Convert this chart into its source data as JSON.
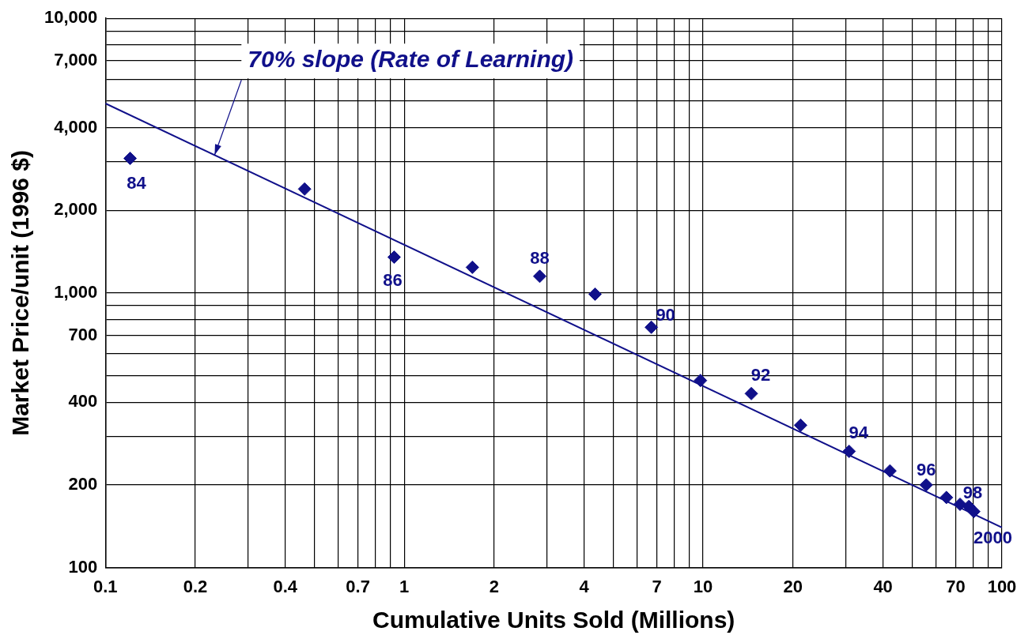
{
  "chart_data": {
    "type": "scatter",
    "xlabel": "Cumulative Units Sold (Millions)",
    "ylabel": "Market Price/unit (1996 $)",
    "log": "xy",
    "grid": true,
    "xlim": [
      0.1,
      100
    ],
    "ylim": [
      100,
      10000
    ],
    "xticks": [
      {
        "value": 0.1,
        "label": "0.1"
      },
      {
        "value": 0.2,
        "label": "0.2"
      },
      {
        "value": 0.3,
        "label": null
      },
      {
        "value": 0.4,
        "label": "0.4"
      },
      {
        "value": 0.5,
        "label": null
      },
      {
        "value": 0.6,
        "label": null
      },
      {
        "value": 0.7,
        "label": "0.7"
      },
      {
        "value": 0.8,
        "label": null
      },
      {
        "value": 0.9,
        "label": null
      },
      {
        "value": 1,
        "label": "1"
      },
      {
        "value": 2,
        "label": "2"
      },
      {
        "value": 3,
        "label": null
      },
      {
        "value": 4,
        "label": "4"
      },
      {
        "value": 5,
        "label": null
      },
      {
        "value": 6,
        "label": null
      },
      {
        "value": 7,
        "label": "7"
      },
      {
        "value": 8,
        "label": null
      },
      {
        "value": 9,
        "label": null
      },
      {
        "value": 10,
        "label": "10"
      },
      {
        "value": 20,
        "label": "20"
      },
      {
        "value": 30,
        "label": null
      },
      {
        "value": 40,
        "label": "40"
      },
      {
        "value": 50,
        "label": null
      },
      {
        "value": 60,
        "label": null
      },
      {
        "value": 70,
        "label": "70"
      },
      {
        "value": 80,
        "label": null
      },
      {
        "value": 90,
        "label": null
      },
      {
        "value": 100,
        "label": "100"
      }
    ],
    "yticks": [
      {
        "value": 100,
        "label": "100"
      },
      {
        "value": 200,
        "label": "200"
      },
      {
        "value": 300,
        "label": null
      },
      {
        "value": 400,
        "label": "400"
      },
      {
        "value": 500,
        "label": null
      },
      {
        "value": 600,
        "label": null
      },
      {
        "value": 700,
        "label": "700"
      },
      {
        "value": 800,
        "label": null
      },
      {
        "value": 900,
        "label": null
      },
      {
        "value": 1000,
        "label": "1,000"
      },
      {
        "value": 2000,
        "label": "2,000"
      },
      {
        "value": 3000,
        "label": null
      },
      {
        "value": 4000,
        "label": "4,000"
      },
      {
        "value": 5000,
        "label": null
      },
      {
        "value": 6000,
        "label": null
      },
      {
        "value": 7000,
        "label": "7,000"
      },
      {
        "value": 8000,
        "label": null
      },
      {
        "value": 9000,
        "label": null
      },
      {
        "value": 10000,
        "label": "10,000"
      }
    ],
    "series": [
      {
        "type": "scatter",
        "marker": "diamond",
        "color": "#10108a",
        "x": [
          0.121,
          0.464,
          0.925,
          1.69,
          2.84,
          4.35,
          6.71,
          9.8,
          14.5,
          21.2,
          30.8,
          42.2,
          55.8,
          65.2,
          72.4,
          77.5,
          80.5
        ],
        "values": [
          3090,
          2390,
          1350,
          1240,
          1150,
          990,
          750,
          480,
          430,
          330,
          265,
          225,
          200,
          180,
          170,
          167,
          160
        ]
      },
      {
        "type": "line",
        "marker": "none",
        "color": "#10108a",
        "x": [
          0.1,
          100
        ],
        "values": [
          4900,
          140
        ]
      }
    ],
    "annotations": [
      {
        "text": "70% slope (Rate of Learning)",
        "x": 0.232,
        "y": 3180
      },
      {
        "text": "84",
        "x": 0.121,
        "y": 3090
      },
      {
        "text": "86",
        "x": 0.925,
        "y": 1350
      },
      {
        "text": "88",
        "x": 2.84,
        "y": 1150
      },
      {
        "text": "90",
        "x": 6.71,
        "y": 750
      },
      {
        "text": "92",
        "x": 14.5,
        "y": 430
      },
      {
        "text": "94",
        "x": 30.8,
        "y": 265
      },
      {
        "text": "96",
        "x": 55.8,
        "y": 200
      },
      {
        "text": "98",
        "x": 72.4,
        "y": 170
      },
      {
        "text": "2000",
        "x": 80.5,
        "y": 160
      }
    ]
  }
}
